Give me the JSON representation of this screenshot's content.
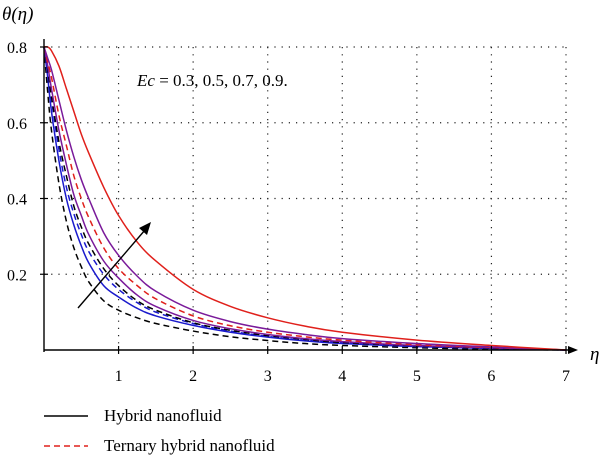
{
  "chart_data": {
    "type": "line",
    "ylabel": "θ(η)",
    "xlabel": "η",
    "xlim": [
      0,
      7
    ],
    "ylim": [
      0,
      0.8
    ],
    "x_ticks": [
      1,
      2,
      3,
      4,
      5,
      6,
      7
    ],
    "y_ticks": [
      0.2,
      0.4,
      0.6,
      0.8
    ],
    "x_tick_labels": [
      "1",
      "2",
      "3",
      "4",
      "5",
      "6",
      "7"
    ],
    "y_tick_labels": [
      "0.2",
      "0.4",
      "0.6",
      "0.8"
    ],
    "grid": true,
    "annotation": {
      "param": "Ec",
      "text": " = 0.3, 0.5, 0.7, 0.9.",
      "arrow": "increasing Ec"
    },
    "legend": {
      "position": "bottom",
      "entries": [
        {
          "label": "Hybrid nanofluid",
          "style": "solid",
          "color": "#000000"
        },
        {
          "label": "Ternary hybrid nanofluid",
          "style": "dashed",
          "color": "#e0201b"
        }
      ]
    },
    "x": [
      0,
      0.05,
      0.1,
      0.2,
      0.3,
      0.4,
      0.5,
      0.6,
      0.8,
      1.0,
      1.25,
      1.5,
      2.0,
      2.5,
      3.0,
      3.5,
      4.0,
      5.0,
      6.0,
      7.0
    ],
    "series": [
      {
        "color": "#000000",
        "dash": "dashed",
        "values": [
          0.8,
          0.68,
          0.58,
          0.44,
          0.34,
          0.27,
          0.22,
          0.18,
          0.13,
          0.105,
          0.085,
          0.07,
          0.05,
          0.035,
          0.025,
          0.017,
          0.012,
          0.006,
          0.002,
          0.0
        ]
      },
      {
        "color": "#1a1acc",
        "dash": "solid",
        "values": [
          0.8,
          0.72,
          0.63,
          0.5,
          0.4,
          0.33,
          0.275,
          0.23,
          0.17,
          0.14,
          0.11,
          0.09,
          0.065,
          0.047,
          0.034,
          0.024,
          0.017,
          0.009,
          0.004,
          0.0
        ]
      },
      {
        "color": "#1a1acc",
        "dash": "dashed",
        "values": [
          0.8,
          0.73,
          0.66,
          0.53,
          0.43,
          0.36,
          0.305,
          0.26,
          0.2,
          0.16,
          0.125,
          0.1,
          0.07,
          0.05,
          0.036,
          0.026,
          0.019,
          0.01,
          0.005,
          0.0
        ]
      },
      {
        "color": "#000000",
        "dash": "dashed",
        "values": [
          0.8,
          0.74,
          0.67,
          0.55,
          0.46,
          0.38,
          0.325,
          0.28,
          0.215,
          0.17,
          0.13,
          0.105,
          0.072,
          0.052,
          0.038,
          0.028,
          0.02,
          0.011,
          0.005,
          0.0
        ]
      },
      {
        "color": "#7a1a9a",
        "dash": "solid",
        "values": [
          0.8,
          0.75,
          0.69,
          0.58,
          0.49,
          0.41,
          0.355,
          0.305,
          0.235,
          0.19,
          0.145,
          0.115,
          0.078,
          0.056,
          0.041,
          0.03,
          0.022,
          0.012,
          0.006,
          0.0
        ]
      },
      {
        "color": "#e0201b",
        "dash": "dashed",
        "values": [
          0.8,
          0.76,
          0.72,
          0.62,
          0.54,
          0.46,
          0.4,
          0.35,
          0.27,
          0.215,
          0.17,
          0.135,
          0.09,
          0.064,
          0.047,
          0.035,
          0.026,
          0.014,
          0.007,
          0.0
        ]
      },
      {
        "color": "#7a1a9a",
        "dash": "solid",
        "values": [
          0.8,
          0.77,
          0.74,
          0.66,
          0.58,
          0.51,
          0.45,
          0.4,
          0.31,
          0.25,
          0.195,
          0.155,
          0.105,
          0.075,
          0.055,
          0.041,
          0.03,
          0.017,
          0.008,
          0.0
        ]
      },
      {
        "color": "#e0201b",
        "dash": "solid",
        "values": [
          0.8,
          0.8,
          0.79,
          0.75,
          0.69,
          0.63,
          0.57,
          0.52,
          0.43,
          0.355,
          0.285,
          0.235,
          0.16,
          0.115,
          0.085,
          0.063,
          0.047,
          0.026,
          0.012,
          0.0
        ]
      }
    ]
  }
}
